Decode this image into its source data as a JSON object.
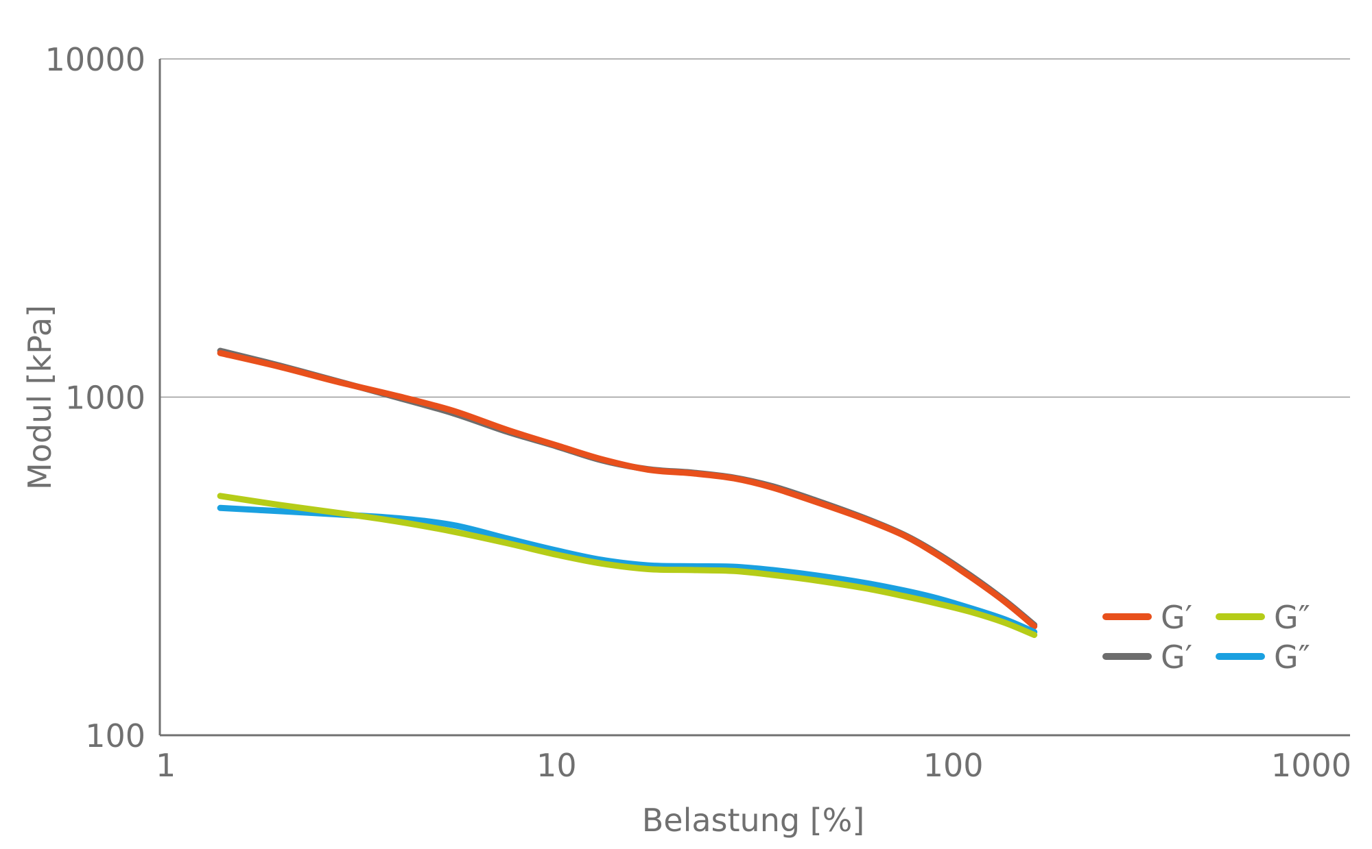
{
  "chart_data": {
    "type": "line",
    "xlabel": "Belastung [%]",
    "ylabel": "Modul [kPa]",
    "x_scale": "log",
    "y_scale": "log",
    "xlim": [
      1,
      1000
    ],
    "ylim": [
      100,
      10000
    ],
    "x_ticks": [
      "1",
      "10",
      "100",
      "1000"
    ],
    "y_ticks": [
      "10000",
      "1000",
      "100"
    ],
    "x_tick_values": [
      1,
      10,
      100,
      1000
    ],
    "y_tick_values": [
      10000,
      1000,
      100
    ],
    "grid": "horizontal",
    "legend_position": "bottom-right",
    "series": [
      {
        "name": "G′",
        "color": "#e8501c",
        "x": [
          1.42,
          2.0,
          2.8,
          4.0,
          5.5,
          7.5,
          10,
          13,
          17,
          22,
          28,
          35,
          45,
          60,
          75,
          90,
          110,
          135,
          160
        ],
        "y": [
          1350,
          1230,
          1110,
          1005,
          910,
          800,
          720,
          655,
          610,
          595,
          575,
          540,
          490,
          435,
          390,
          345,
          295,
          248,
          210
        ]
      },
      {
        "name": "G′",
        "color": "#6d6d6d",
        "x": [
          1.42,
          2.0,
          2.8,
          4.0,
          5.5,
          7.5,
          10,
          13,
          17,
          22,
          28,
          35,
          45,
          60,
          75,
          90,
          110,
          135,
          160
        ],
        "y": [
          1370,
          1240,
          1115,
          995,
          895,
          790,
          715,
          650,
          612,
          598,
          578,
          545,
          495,
          438,
          392,
          348,
          298,
          250,
          212
        ]
      },
      {
        "name": "G″",
        "color": "#b5cc18",
        "x": [
          1.42,
          2.0,
          2.8,
          4.0,
          5.5,
          7.5,
          10,
          13,
          17,
          22,
          28,
          35,
          45,
          60,
          75,
          90,
          110,
          135,
          160
        ],
        "y": [
          510,
          480,
          455,
          428,
          400,
          370,
          342,
          322,
          310,
          308,
          306,
          298,
          287,
          272,
          258,
          246,
          232,
          215,
          198
        ]
      },
      {
        "name": "G″",
        "color": "#1aa0e0",
        "x": [
          1.42,
          2.0,
          2.8,
          4.0,
          5.5,
          7.5,
          10,
          13,
          17,
          22,
          28,
          35,
          45,
          60,
          75,
          90,
          110,
          135,
          160
        ],
        "y": [
          470,
          460,
          450,
          438,
          418,
          382,
          352,
          330,
          318,
          316,
          315,
          308,
          297,
          282,
          268,
          255,
          238,
          220,
          202
        ]
      }
    ]
  }
}
